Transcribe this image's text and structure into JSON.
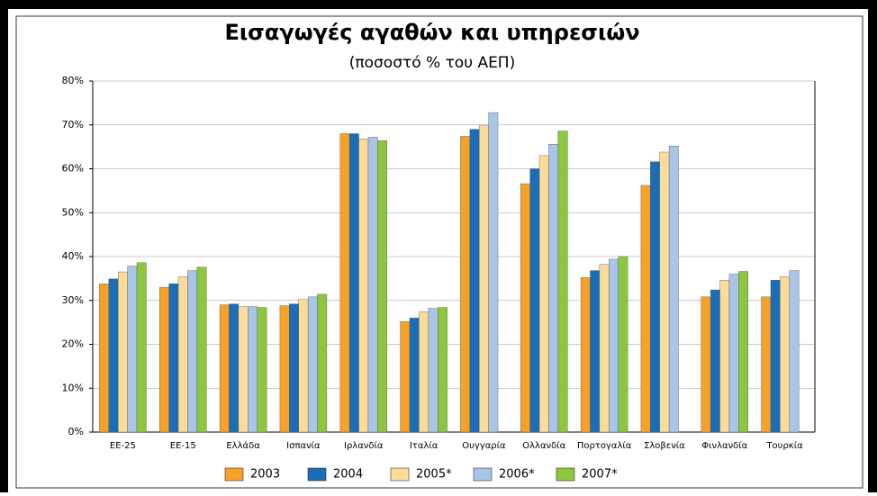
{
  "chart_data": {
    "type": "bar",
    "title": "Εισαγωγές αγαθών και υπηρεσιών",
    "subtitle": "(ποσοστό % του ΑΕΠ)",
    "categories": [
      "ΕΕ-25",
      "ΕΕ-15",
      "Ελλάδα",
      "Ισπανία",
      "Ιρλανδία",
      "Ιταλία",
      "Ουγγαρία",
      "Ολλανδία",
      "Πορτογαλία",
      "Σλοβενία",
      "Φινλανδία",
      "Τουρκία"
    ],
    "series": [
      {
        "name": "2003",
        "color": "#f7a128",
        "values": [
          33.8,
          33.0,
          29.0,
          28.8,
          68.0,
          25.2,
          67.4,
          56.6,
          35.2,
          56.2,
          30.8,
          30.8
        ]
      },
      {
        "name": "2004",
        "color": "#1a6eb8",
        "values": [
          34.9,
          33.8,
          29.2,
          29.2,
          68.0,
          26.0,
          69.0,
          60.0,
          36.8,
          61.6,
          32.4,
          34.6
        ]
      },
      {
        "name": "2005*",
        "color": "#fddc9a",
        "values": [
          36.5,
          35.4,
          28.6,
          30.2,
          66.8,
          27.4,
          69.8,
          63.0,
          38.2,
          63.8,
          34.6,
          35.4
        ]
      },
      {
        "name": "2006*",
        "color": "#a9c6e8",
        "values": [
          37.8,
          36.8,
          28.6,
          30.8,
          67.2,
          28.2,
          72.8,
          65.6,
          39.4,
          65.2,
          36.0,
          36.8
        ]
      },
      {
        "name": "2007*",
        "color": "#8dc63f",
        "values": [
          38.6,
          37.6,
          28.4,
          31.4,
          66.4,
          28.4,
          null,
          68.6,
          40.0,
          null,
          36.6,
          null
        ]
      }
    ],
    "ylim": [
      0,
      80
    ],
    "yticks": [
      {
        "value": 0,
        "label": "0%"
      },
      {
        "value": 10,
        "label": "10%"
      },
      {
        "value": 20,
        "label": "20%"
      },
      {
        "value": 30,
        "label": "30%"
      },
      {
        "value": 40,
        "label": "40%"
      },
      {
        "value": 50,
        "label": "50%"
      },
      {
        "value": 60,
        "label": "60%"
      },
      {
        "value": 70,
        "label": "70%"
      },
      {
        "value": 80,
        "label": "80%"
      }
    ],
    "grid": true,
    "legend": "bottom"
  }
}
